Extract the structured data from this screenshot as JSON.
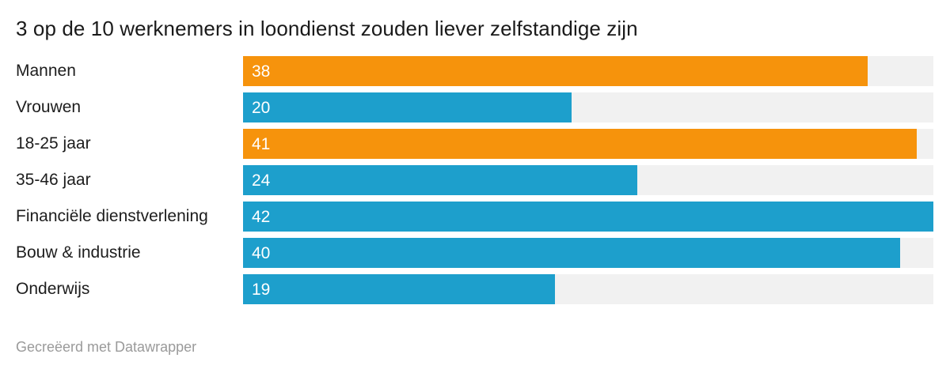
{
  "page": {
    "background": "#ffffff"
  },
  "header": {
    "title": "3 op de 10 werknemers in loondienst zouden liever zelfstandige zijn"
  },
  "footer": {
    "credit": "Gecreëerd met Datawrapper"
  },
  "colors": {
    "highlight": "#F6930C",
    "base": "#1D9FCC",
    "track": "#F1F1F1",
    "value_label": "#FFFFFF",
    "title_text": "#1A1A1A",
    "label_text": "#1D1D1D",
    "credit_text": "#9A9A9A"
  },
  "chart_data": {
    "type": "bar",
    "orientation": "horizontal",
    "title": "3 op de 10 werknemers in loondienst zouden liever zelfstandige zijn",
    "categories": [
      "Mannen",
      "Vrouwen",
      "18-25 jaar",
      "35-46 jaar",
      "Financiële dienstverlening",
      "Bouw & industrie",
      "Onderwijs"
    ],
    "values": [
      38,
      20,
      41,
      24,
      42,
      40,
      19
    ],
    "bar_colors": [
      "#F6930C",
      "#1D9FCC",
      "#F6930C",
      "#1D9FCC",
      "#1D9FCC",
      "#1D9FCC",
      "#1D9FCC"
    ],
    "xlim": [
      0,
      42
    ],
    "value_labels": "inside-left",
    "grid": false,
    "legend": null
  }
}
